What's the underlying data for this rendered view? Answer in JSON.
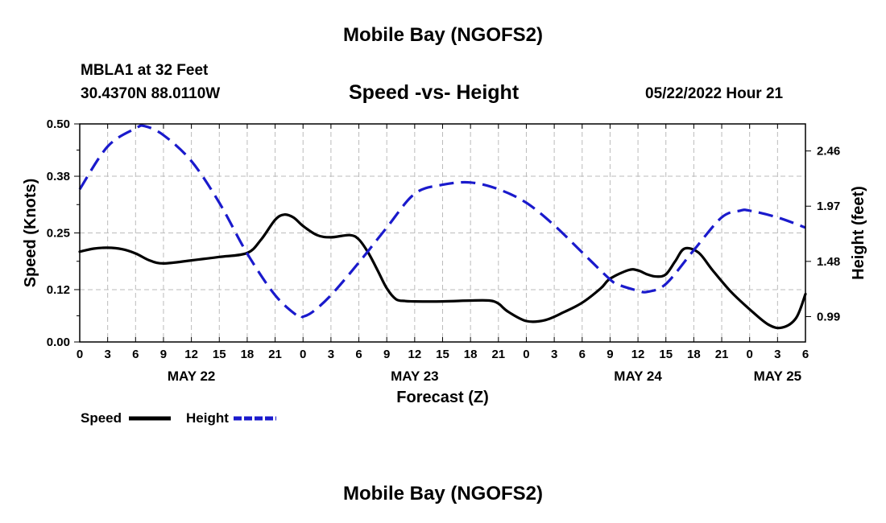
{
  "header": {
    "title": "Mobile Bay (NGOFS2)",
    "station": "MBLA1 at 32 Feet",
    "coords": "30.4370N  88.0110W",
    "subtitle": "Speed -vs- Height",
    "datetime": "05/22/2022 Hour 21"
  },
  "footer": {
    "title": "Mobile Bay (NGOFS2)"
  },
  "colors": {
    "speed": "#000000",
    "height": "#1a1acc",
    "grid": "#bbbbbb"
  },
  "chart_data": {
    "type": "line",
    "title": "Speed -vs- Height",
    "xlabel": "Forecast (Z)",
    "ylabel_left": "Speed (Knots)",
    "ylabel_right": "Height (feet)",
    "x_range_hours": [
      0,
      78
    ],
    "x_tick_step_hours": 3,
    "x_tick_labels": [
      "0",
      "3",
      "6",
      "9",
      "12",
      "15",
      "18",
      "21",
      "0",
      "3",
      "6",
      "9",
      "12",
      "15",
      "18",
      "21",
      "0",
      "3",
      "6",
      "9",
      "12",
      "15",
      "18",
      "21",
      "0",
      "3",
      "6"
    ],
    "date_labels": [
      {
        "hour": 12,
        "label": "MAY 22"
      },
      {
        "hour": 36,
        "label": "MAY 23"
      },
      {
        "hour": 60,
        "label": "MAY 24"
      },
      {
        "hour": 75,
        "label": "MAY 25"
      }
    ],
    "left_axis": {
      "min": 0,
      "max": 0.5,
      "ticks": [
        "0.00",
        "0.12",
        "0.25",
        "0.38",
        "0.50"
      ]
    },
    "right_axis": {
      "min": 0.765,
      "max": 2.7,
      "ticks": [
        "0.99",
        "1.48",
        "1.97",
        "2.46"
      ]
    },
    "grid": true,
    "legend": [
      {
        "name": "Speed",
        "style": "solid"
      },
      {
        "name": "Height",
        "style": "dashed"
      }
    ],
    "series": [
      {
        "name": "Speed",
        "axis": "left",
        "x": [
          0,
          1.5,
          3,
          4.5,
          6,
          7.5,
          9,
          12,
          15,
          18,
          19.5,
          21,
          22,
          23,
          24,
          25.5,
          27,
          29,
          30,
          31,
          32,
          33,
          34,
          35,
          36,
          39,
          42,
          44,
          45,
          46,
          48,
          50,
          52,
          54,
          56,
          57,
          59,
          60,
          61,
          62,
          63,
          64,
          65,
          66.5,
          68,
          70,
          72,
          74,
          75.5,
          77,
          78
        ],
        "values": [
          0.207,
          0.214,
          0.216,
          0.213,
          0.203,
          0.187,
          0.18,
          0.187,
          0.195,
          0.204,
          0.235,
          0.28,
          0.292,
          0.285,
          0.266,
          0.245,
          0.24,
          0.245,
          0.235,
          0.205,
          0.165,
          0.123,
          0.098,
          0.094,
          0.093,
          0.093,
          0.095,
          0.095,
          0.088,
          0.07,
          0.048,
          0.05,
          0.068,
          0.09,
          0.123,
          0.145,
          0.165,
          0.164,
          0.155,
          0.15,
          0.155,
          0.185,
          0.214,
          0.205,
          0.165,
          0.115,
          0.075,
          0.04,
          0.033,
          0.055,
          0.11
        ]
      },
      {
        "name": "Height",
        "axis": "right",
        "x": [
          0,
          3,
          6,
          7,
          9,
          12,
          15,
          18,
          21,
          23.5,
          24,
          25,
          27,
          30,
          33,
          36,
          39,
          42,
          45,
          48,
          51,
          54,
          57,
          58,
          60,
          61,
          63,
          66,
          69,
          71,
          72,
          75,
          78
        ],
        "values": [
          2.12,
          2.5,
          2.66,
          2.68,
          2.6,
          2.37,
          2.0,
          1.55,
          1.18,
          0.99,
          0.99,
          1.03,
          1.18,
          1.47,
          1.78,
          2.08,
          2.16,
          2.18,
          2.12,
          2.0,
          1.8,
          1.56,
          1.32,
          1.27,
          1.22,
          1.21,
          1.28,
          1.58,
          1.87,
          1.93,
          1.93,
          1.87,
          1.78
        ]
      }
    ]
  }
}
